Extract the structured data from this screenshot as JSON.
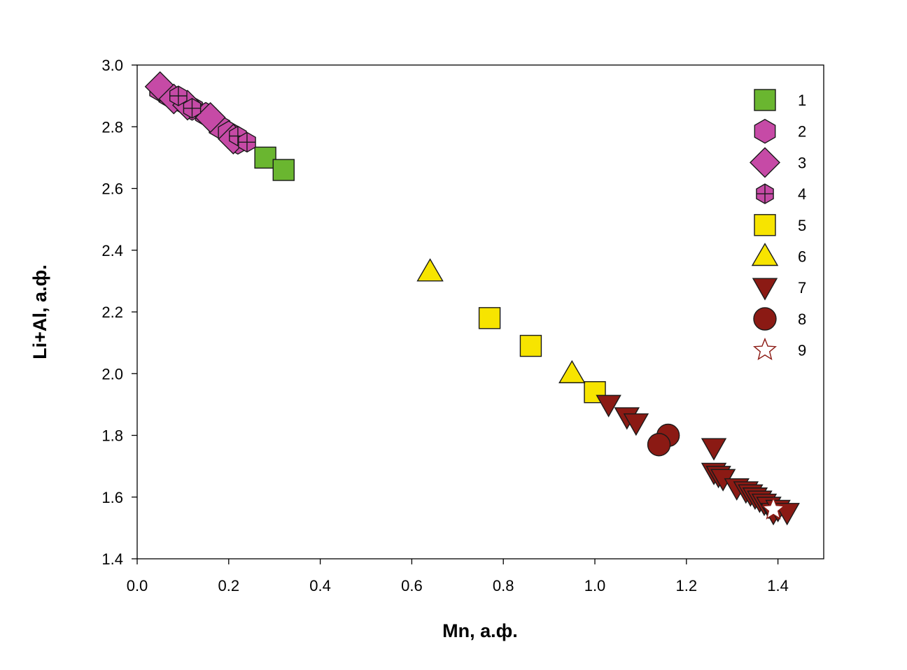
{
  "chart_data": {
    "type": "scatter",
    "title": "",
    "xlabel": "Mn, а.ф.",
    "ylabel": "Li+Al, а.ф.",
    "xlim": [
      0.0,
      1.5
    ],
    "ylim": [
      1.4,
      3.0
    ],
    "xticks": [
      0.0,
      0.2,
      0.4,
      0.6,
      0.8,
      1.0,
      1.2,
      1.4
    ],
    "xtick_labels": [
      "0.0",
      "0.2",
      "0.4",
      "0.6",
      "0.8",
      "1.0",
      "1.2",
      "1.4"
    ],
    "yticks": [
      1.4,
      1.6,
      1.8,
      2.0,
      2.2,
      2.4,
      2.6,
      2.8,
      3.0
    ],
    "ytick_labels": [
      "1.4",
      "1.6",
      "1.8",
      "2.0",
      "2.2",
      "2.4",
      "2.6",
      "2.8",
      "3.0"
    ],
    "grid": false,
    "legend_position": "top-right",
    "colors": {
      "green": "#6ab630",
      "magenta": "#c64aa6",
      "yellow": "#f7e400",
      "darkred": "#8b1a14",
      "outline": "#1a1a1a"
    },
    "series": [
      {
        "name": "1",
        "marker": "square",
        "color": "#6ab630",
        "points": [
          [
            0.28,
            2.7
          ],
          [
            0.32,
            2.66
          ]
        ]
      },
      {
        "name": "2",
        "marker": "hexagon",
        "color": "#c64aa6",
        "points": [
          [
            0.05,
            2.92
          ],
          [
            0.07,
            2.9
          ],
          [
            0.1,
            2.88
          ],
          [
            0.12,
            2.86
          ],
          [
            0.15,
            2.84
          ],
          [
            0.18,
            2.8
          ],
          [
            0.2,
            2.78
          ],
          [
            0.22,
            2.75
          ]
        ]
      },
      {
        "name": "3",
        "marker": "diamond",
        "color": "#c64aa6",
        "points": [
          [
            0.05,
            2.93
          ],
          [
            0.08,
            2.89
          ],
          [
            0.11,
            2.87
          ],
          [
            0.16,
            2.83
          ],
          [
            0.21,
            2.76
          ]
        ]
      },
      {
        "name": "4",
        "marker": "hexagon-cross",
        "color": "#c64aa6",
        "points": [
          [
            0.09,
            2.9
          ],
          [
            0.12,
            2.86
          ],
          [
            0.22,
            2.77
          ],
          [
            0.24,
            2.75
          ]
        ]
      },
      {
        "name": "5",
        "marker": "square",
        "color": "#f7e400",
        "points": [
          [
            0.77,
            2.18
          ],
          [
            0.86,
            2.09
          ],
          [
            1.0,
            1.94
          ]
        ]
      },
      {
        "name": "6",
        "marker": "triangle-up",
        "color": "#f7e400",
        "points": [
          [
            0.64,
            2.33
          ],
          [
            0.95,
            2.0
          ]
        ]
      },
      {
        "name": "7",
        "marker": "triangle-down",
        "color": "#8b1a14",
        "points": [
          [
            1.03,
            1.9
          ],
          [
            1.07,
            1.86
          ],
          [
            1.09,
            1.84
          ],
          [
            1.26,
            1.76
          ],
          [
            1.26,
            1.68
          ],
          [
            1.27,
            1.67
          ],
          [
            1.28,
            1.66
          ],
          [
            1.31,
            1.63
          ],
          [
            1.33,
            1.62
          ],
          [
            1.34,
            1.61
          ],
          [
            1.35,
            1.6
          ],
          [
            1.36,
            1.59
          ],
          [
            1.37,
            1.58
          ],
          [
            1.38,
            1.57
          ],
          [
            1.39,
            1.55
          ],
          [
            1.4,
            1.56
          ],
          [
            1.42,
            1.55
          ]
        ]
      },
      {
        "name": "8",
        "marker": "circle",
        "color": "#8b1a14",
        "points": [
          [
            1.16,
            1.8
          ],
          [
            1.14,
            1.77
          ]
        ]
      },
      {
        "name": "9",
        "marker": "star",
        "color": "#ffffff",
        "stroke": "#8b1a14",
        "points": [
          [
            1.39,
            1.56
          ]
        ]
      }
    ]
  }
}
